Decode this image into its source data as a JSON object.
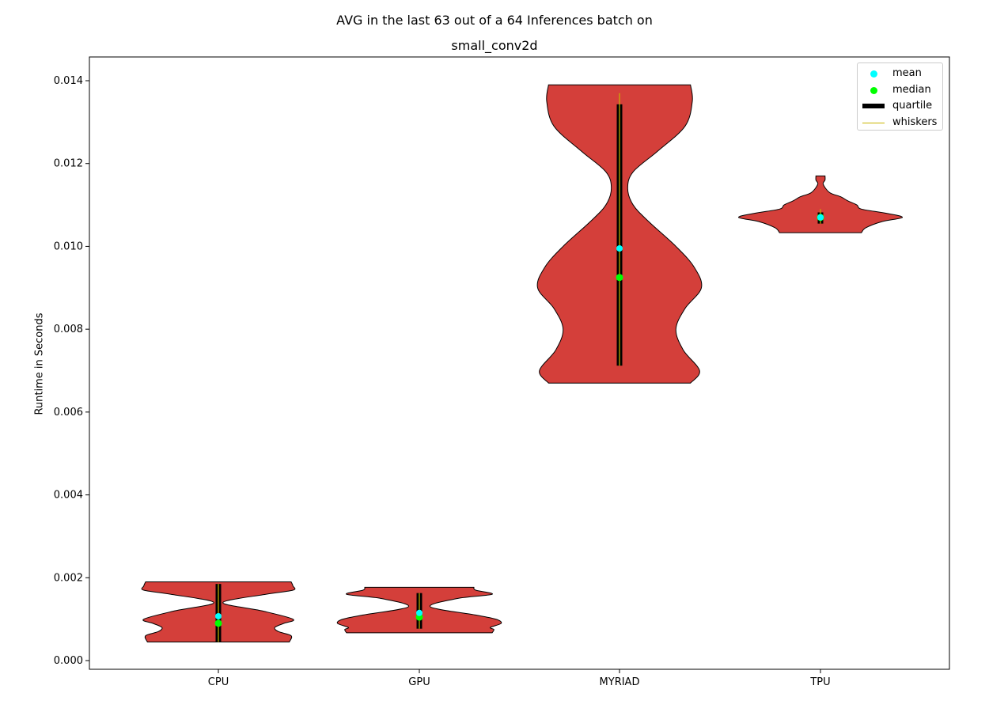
{
  "chart_data": {
    "type": "violin",
    "title": "AVG in the last 63 out of a 64 Inferences batch on",
    "subtitle": "small_conv2d",
    "xlabel": "",
    "ylabel": "Runtime in Seconds",
    "ylim": [
      -0.0002,
      0.0145
    ],
    "yticks": [
      "0.000",
      "0.002",
      "0.004",
      "0.006",
      "0.008",
      "0.010",
      "0.012",
      "0.014"
    ],
    "categories": [
      "CPU",
      "GPU",
      "MYRIAD",
      "TPU"
    ],
    "grid": false,
    "legend_placement": "top-right",
    "colors": {
      "violin_fill": "#d43f3a",
      "violin_edge": "#000000",
      "mean": "#00ffff",
      "median": "#00ff00",
      "quartile": "#000000",
      "whiskers": "#c8b400"
    },
    "violins": [
      {
        "name": "CPU",
        "min": 0.00045,
        "max": 0.0019,
        "mean": 0.00107,
        "median": 0.0009,
        "q1": 0.00045,
        "q3": 0.00185,
        "whisker_low": 0.00045,
        "whisker_high": 0.00185,
        "profile_y": [
          0.00045,
          0.0006,
          0.0007,
          0.0008,
          0.0009,
          0.001,
          0.0012,
          0.0014,
          0.0016,
          0.0017,
          0.0018,
          0.0019
        ],
        "profile_width": [
          0.78,
          0.8,
          0.66,
          0.62,
          0.72,
          0.82,
          0.48,
          0.05,
          0.52,
          0.82,
          0.82,
          0.8
        ]
      },
      {
        "name": "GPU",
        "min": 0.00067,
        "max": 0.00177,
        "mean": 0.00115,
        "median": 0.00105,
        "q1": 0.00077,
        "q3": 0.00163,
        "whisker_low": 0.00077,
        "whisker_high": 0.00163,
        "profile_y": [
          0.00067,
          0.00075,
          0.0008,
          0.0009,
          0.001,
          0.0011,
          0.0013,
          0.0015,
          0.0016,
          0.0017,
          0.00177
        ],
        "profile_width": [
          0.8,
          0.82,
          0.78,
          0.9,
          0.84,
          0.62,
          0.12,
          0.42,
          0.8,
          0.62,
          0.6
        ]
      },
      {
        "name": "MYRIAD",
        "min": 0.0067,
        "max": 0.0139,
        "mean": 0.00995,
        "median": 0.00925,
        "q1": 0.00712,
        "q3": 0.01343,
        "whisker_low": 0.00712,
        "whisker_high": 0.0137,
        "profile_y": [
          0.0067,
          0.007,
          0.0075,
          0.008,
          0.0085,
          0.009,
          0.0095,
          0.01,
          0.0106,
          0.011,
          0.0114,
          0.0118,
          0.0123,
          0.0129,
          0.0135,
          0.0139
        ],
        "profile_width": [
          0.78,
          0.88,
          0.7,
          0.62,
          0.72,
          0.9,
          0.82,
          0.62,
          0.32,
          0.15,
          0.09,
          0.15,
          0.42,
          0.72,
          0.8,
          0.78
        ]
      },
      {
        "name": "TPU",
        "min": 0.01033,
        "max": 0.0117,
        "mean": 0.0107,
        "median": 0.0107,
        "q1": 0.01055,
        "q3": 0.01082,
        "whisker_low": 0.01055,
        "whisker_high": 0.0109,
        "profile_y": [
          0.01033,
          0.01045,
          0.0106,
          0.0107,
          0.0108,
          0.0109,
          0.011,
          0.0111,
          0.0112,
          0.0113,
          0.0115,
          0.0116,
          0.0117
        ],
        "profile_width": [
          0.45,
          0.5,
          0.68,
          0.9,
          0.72,
          0.45,
          0.4,
          0.3,
          0.22,
          0.1,
          0.03,
          0.05,
          0.05
        ]
      }
    ],
    "legend": [
      {
        "label": "mean",
        "symbol": "dot",
        "color": "#00ffff"
      },
      {
        "label": "median",
        "symbol": "dot",
        "color": "#00ff00"
      },
      {
        "label": "quartile",
        "symbol": "bar",
        "color": "#000000"
      },
      {
        "label": "whiskers",
        "symbol": "line",
        "color": "#c8b400"
      }
    ]
  }
}
